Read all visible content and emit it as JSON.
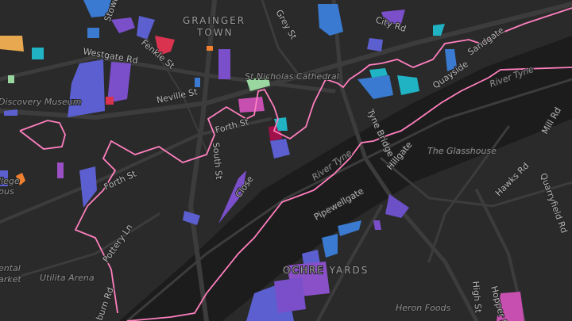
{
  "map": {
    "theme": "dark",
    "boundary_color": "#ff7fbf",
    "river_color": "#1c1c1c",
    "labels": {
      "grainger": "GRAINGER",
      "town": "TOWN",
      "ochre_yards": "OCHRE YARDS",
      "stowell": "Stowell",
      "grey_st": "Grey St",
      "city_rd": "City Rd",
      "sandgate": "Sandgate",
      "westgate_rd": "Westgate Rd",
      "fenkle_st": "Fenkle St",
      "st_nicholas": "St Nicholas Cathedral",
      "neville_st": "Neville St",
      "discovery": "Discovery Museum",
      "quayside": "Quayside",
      "river_tyne_1": "River Tyne",
      "river_tyne_2": "River Tyne",
      "tyne_bridge": "Tyne Bridge",
      "forth_st_1": "Forth St",
      "forth_st_2": "Forth St",
      "south_st": "South St",
      "close": "Close",
      "hillgate": "Hillgate",
      "glasshouse": "The Glasshouse",
      "mill_rd": "Mill Rd",
      "hawks_rd": "Hawks Rd",
      "quarryfield": "Quarryfield Rd",
      "college": "llege",
      "campus": "pus",
      "pipewellgate": "Pipewellgate",
      "pottery_ln": "Pottery Ln",
      "utilita": "Utilita Arena",
      "rental": "ental",
      "market": "arket",
      "redheugh": "burn Rd",
      "heron": "Heron Foods",
      "high_st": "High St",
      "hopper": "Hopper St"
    },
    "building_colors": [
      "#5b5fcf",
      "#7a4fc9",
      "#3a7ad0",
      "#1fb3c4",
      "#d9334f",
      "#c64fb0",
      "#9ad6a0",
      "#e8a84f",
      "#f08030"
    ]
  }
}
